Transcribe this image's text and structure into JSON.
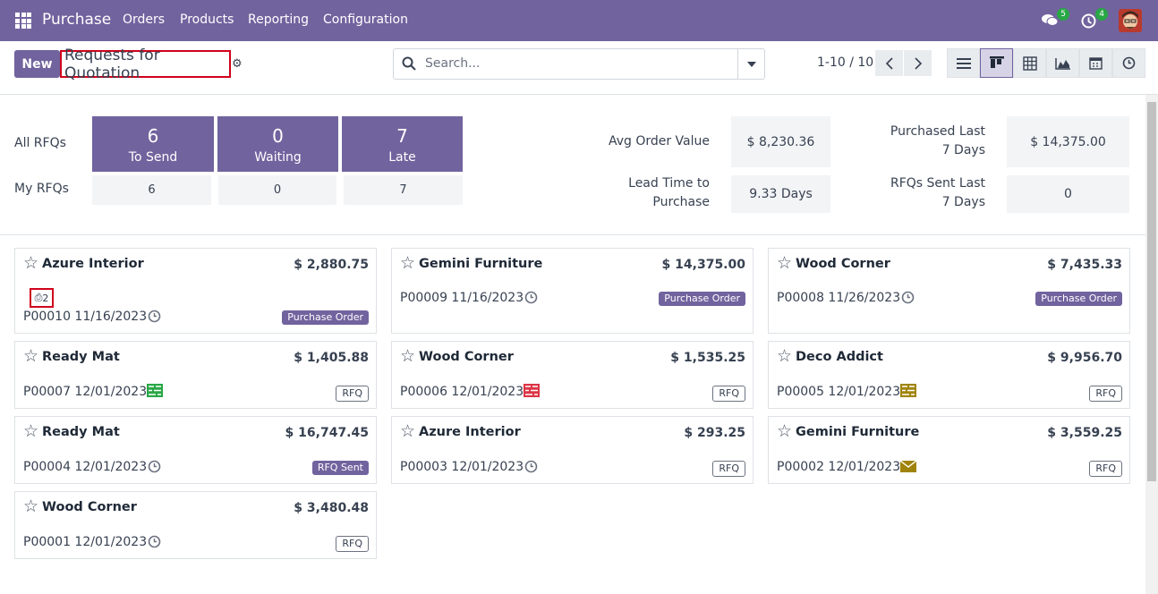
{
  "nav": {
    "brand": "Purchase",
    "menu": [
      "Orders",
      "Products",
      "Reporting",
      "Configuration"
    ],
    "chat_count": "5",
    "activity_count": "4"
  },
  "control": {
    "new_label": "New",
    "title": "Requests for Quotation",
    "search_placeholder": "Search...",
    "pager": "1-10 / 10"
  },
  "dashboard": {
    "all_label": "All RFQs",
    "my_label": "My RFQs",
    "tiles": [
      {
        "count": "6",
        "label": "To Send"
      },
      {
        "count": "0",
        "label": "Waiting"
      },
      {
        "count": "7",
        "label": "Late"
      }
    ],
    "my": [
      "6",
      "0",
      "7"
    ],
    "stats": [
      {
        "label": "Avg Order Value",
        "value": "$ 8,230.36"
      },
      {
        "label": "Purchased Last 7 Days",
        "value": "$ 14,375.00"
      },
      {
        "label": "Lead Time to Purchase",
        "value": "9.33 Days"
      },
      {
        "label": "RFQs Sent Last 7 Days",
        "value": "0"
      }
    ]
  },
  "cards": [
    {
      "partner": "Azure Interior",
      "amount": "$ 2,880.75",
      "ref": "P00010 11/16/2023",
      "activity": "clock-icon",
      "status": "Purchase Order",
      "kind": "po",
      "attachments": "2"
    },
    {
      "partner": "Gemini Furniture",
      "amount": "$ 14,375.00",
      "ref": "P00009 11/16/2023",
      "activity": "clock-icon",
      "status": "Purchase Order",
      "kind": "po"
    },
    {
      "partner": "Wood Corner",
      "amount": "$ 7,435.33",
      "ref": "P00008 11/26/2023",
      "activity": "clock-icon",
      "status": "Purchase Order",
      "kind": "po"
    },
    {
      "partner": "Ready Mat",
      "amount": "$ 1,405.88",
      "ref": "P00007 12/01/2023",
      "activity": "todo-icon",
      "activity_color": "#28a745",
      "status": "RFQ",
      "kind": "rfq"
    },
    {
      "partner": "Wood Corner",
      "amount": "$ 1,535.25",
      "ref": "P00006 12/01/2023",
      "activity": "todo-icon",
      "activity_color": "#dc3545",
      "status": "RFQ",
      "kind": "rfq"
    },
    {
      "partner": "Deco Addict",
      "amount": "$ 9,956.70",
      "ref": "P00005 12/01/2023",
      "activity": "todo-icon",
      "activity_color": "#a0840a",
      "status": "RFQ",
      "kind": "rfq"
    },
    {
      "partner": "Ready Mat",
      "amount": "$ 16,747.45",
      "ref": "P00004 12/01/2023",
      "activity": "clock-icon",
      "status": "RFQ Sent",
      "kind": "sent"
    },
    {
      "partner": "Azure Interior",
      "amount": "$ 293.25",
      "ref": "P00003 12/01/2023",
      "activity": "clock-icon",
      "status": "RFQ",
      "kind": "rfq"
    },
    {
      "partner": "Gemini Furniture",
      "amount": "$ 3,559.25",
      "ref": "P00002 12/01/2023",
      "activity": "envelope-icon",
      "activity_color": "#a0840a",
      "status": "RFQ",
      "kind": "rfq"
    },
    {
      "partner": "Wood Corner",
      "amount": "$ 3,480.48",
      "ref": "P00001 12/01/2023",
      "activity": "clock-icon",
      "status": "RFQ",
      "kind": "rfq"
    }
  ]
}
